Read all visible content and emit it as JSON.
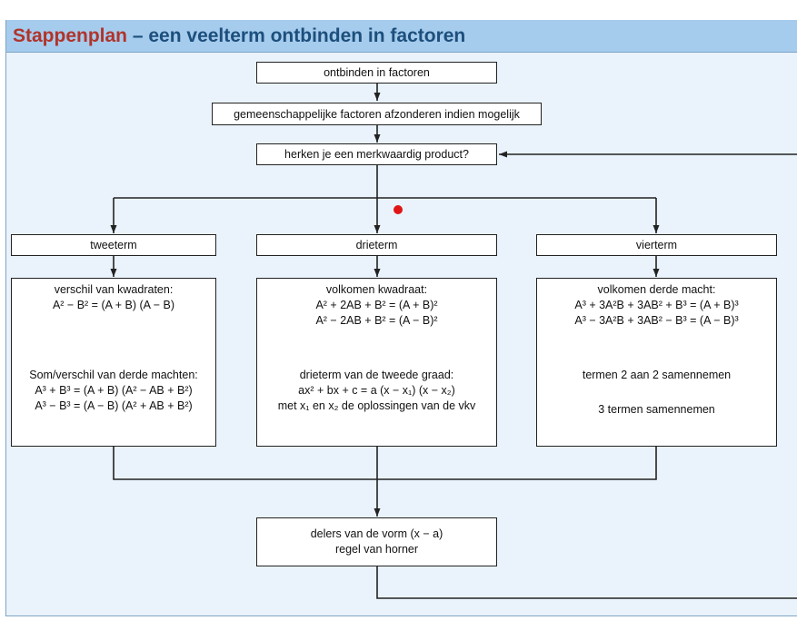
{
  "title": {
    "highlight": "Stappenplan",
    "rest": " – een veelterm ontbinden in factoren"
  },
  "steps": {
    "start": "ontbinden in factoren",
    "common": "gemeenschappelijke factoren afzonderen indien mogelijk",
    "question": "herken je een merkwaardig product?"
  },
  "categories": {
    "two": "tweeterm",
    "three": "drieterm",
    "four": "vierterm"
  },
  "two_terms": {
    "squares_title": "verschil van kwadraten:",
    "squares_formula": "A² − B² = (A + B) (A − B)",
    "cubes_title": "Som/verschil van derde machten:",
    "cubes_formula_sum": "A³ + B³ = (A + B) (A² − AB + B²)",
    "cubes_formula_diff": "A³ − B³ = (A − B) (A² + AB + B²)"
  },
  "three_terms": {
    "square_title": "volkomen kwadraat:",
    "square_formula_plus": "A² + 2AB + B² = (A + B)²",
    "square_formula_minus": "A² − 2AB + B² = (A − B)²",
    "quadratic_title": "drieterm van de tweede graad:",
    "quadratic_formula": "ax² + bx + c = a (x − x₁) (x − x₂)",
    "quadratic_note": "met x₁ en x₂ de oplossingen van de vkv"
  },
  "four_terms": {
    "cube_title": "volkomen derde macht:",
    "cube_formula_plus": "A³ + 3A²B + 3AB² + B³ = (A + B)³",
    "cube_formula_minus": "A³ − 3A²B + 3AB² − B³ = (A − B)³",
    "group_pairs": "termen 2 aan 2 samennemen",
    "group_three": "3 termen samennemen"
  },
  "final": {
    "line1": "delers van de vorm (x − a)",
    "line2": "regel van horner"
  },
  "colors": {
    "title_bar": "#a5cbed",
    "background": "#eaf3fb",
    "title_red": "#b0342a",
    "title_blue": "#1d4f7c",
    "marker": "#e01515"
  }
}
